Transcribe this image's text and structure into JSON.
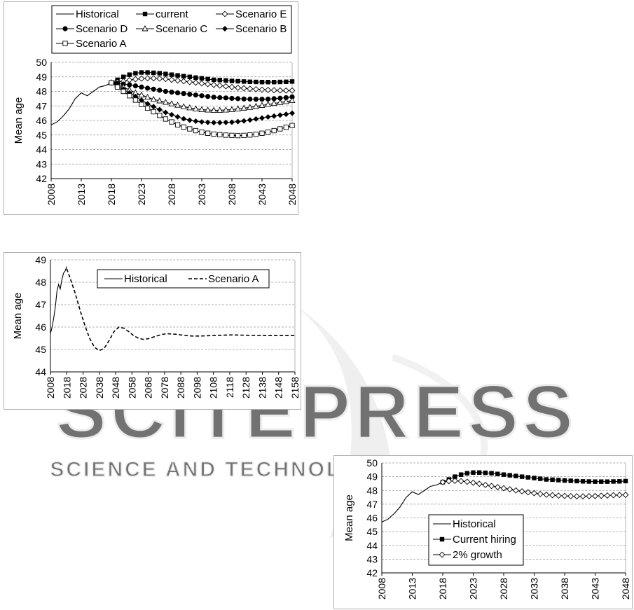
{
  "watermark": {
    "text_big": "SCITEPRESS",
    "text_small": "SCIENCE AND TECHNOLOGY PUBLICATIONS",
    "color": "#d8d8d8"
  },
  "chart_data": [
    {
      "id": "c1",
      "type": "line",
      "ylabel": "Mean age",
      "xlabel": "",
      "title": "",
      "xlim": [
        2008,
        2048
      ],
      "ylim": [
        42,
        50
      ],
      "yticks": [
        42,
        43,
        44,
        45,
        46,
        47,
        48,
        49,
        50
      ],
      "xticks": [
        "2008",
        "2013",
        "2018",
        "2023",
        "2028",
        "2033",
        "2038",
        "2043",
        "2048"
      ],
      "grid": "horizontal-dashed",
      "legend": "top",
      "series": [
        {
          "name": "Historical",
          "marker": "none",
          "x": [
            2008,
            2009,
            2010,
            2011,
            2012,
            2013,
            2014,
            2015,
            2016,
            2017,
            2018
          ],
          "y": [
            45.7,
            45.9,
            46.3,
            46.8,
            47.5,
            47.9,
            47.7,
            48.0,
            48.3,
            48.4,
            48.6
          ]
        },
        {
          "name": "current",
          "marker": "square-filled",
          "x": [
            2018,
            2019,
            2020,
            2021,
            2022,
            2023,
            2024,
            2025,
            2026,
            2027,
            2028,
            2029,
            2030,
            2031,
            2032,
            2033,
            2034,
            2035,
            2036,
            2037,
            2038,
            2039,
            2040,
            2041,
            2042,
            2043,
            2044,
            2045,
            2046,
            2047,
            2048
          ],
          "y": [
            48.6,
            48.8,
            49.0,
            49.15,
            49.25,
            49.3,
            49.3,
            49.28,
            49.25,
            49.2,
            49.15,
            49.1,
            49.05,
            49.0,
            48.95,
            48.9,
            48.85,
            48.8,
            48.78,
            48.75,
            48.72,
            48.7,
            48.68,
            48.66,
            48.65,
            48.64,
            48.64,
            48.64,
            48.65,
            48.66,
            48.68
          ]
        },
        {
          "name": "Scenario E",
          "marker": "diamond-open",
          "x": [
            2018,
            2019,
            2020,
            2021,
            2022,
            2023,
            2024,
            2025,
            2026,
            2027,
            2028,
            2029,
            2030,
            2031,
            2032,
            2033,
            2034,
            2035,
            2036,
            2037,
            2038,
            2039,
            2040,
            2041,
            2042,
            2043,
            2044,
            2045,
            2046,
            2047,
            2048
          ],
          "y": [
            48.6,
            48.65,
            48.7,
            48.78,
            48.84,
            48.88,
            48.9,
            48.9,
            48.88,
            48.85,
            48.8,
            48.75,
            48.7,
            48.65,
            48.6,
            48.55,
            48.5,
            48.45,
            48.4,
            48.35,
            48.3,
            48.25,
            48.22,
            48.18,
            48.15,
            48.12,
            48.1,
            48.08,
            48.07,
            48.06,
            48.06
          ]
        },
        {
          "name": "Scenario D",
          "marker": "circle-filled",
          "x": [
            2018,
            2019,
            2020,
            2021,
            2022,
            2023,
            2024,
            2025,
            2026,
            2027,
            2028,
            2029,
            2030,
            2031,
            2032,
            2033,
            2034,
            2035,
            2036,
            2037,
            2038,
            2039,
            2040,
            2041,
            2042,
            2043,
            2044,
            2045,
            2046,
            2047,
            2048
          ],
          "y": [
            48.6,
            48.55,
            48.5,
            48.45,
            48.38,
            48.3,
            48.22,
            48.15,
            48.08,
            48.0,
            47.95,
            47.9,
            47.85,
            47.8,
            47.75,
            47.7,
            47.65,
            47.6,
            47.57,
            47.55,
            47.52,
            47.5,
            47.48,
            47.47,
            47.46,
            47.46,
            47.47,
            47.5,
            47.53,
            47.57,
            47.62
          ]
        },
        {
          "name": "Scenario C",
          "marker": "triangle-open",
          "x": [
            2018,
            2019,
            2020,
            2021,
            2022,
            2023,
            2024,
            2025,
            2026,
            2027,
            2028,
            2029,
            2030,
            2031,
            2032,
            2033,
            2034,
            2035,
            2036,
            2037,
            2038,
            2039,
            2040,
            2041,
            2042,
            2043,
            2044,
            2045,
            2046,
            2047,
            2048
          ],
          "y": [
            48.6,
            48.45,
            48.3,
            48.1,
            47.9,
            47.75,
            47.6,
            47.45,
            47.35,
            47.25,
            47.15,
            47.05,
            46.95,
            46.87,
            46.8,
            46.75,
            46.72,
            46.7,
            46.7,
            46.72,
            46.75,
            46.8,
            46.85,
            46.9,
            46.97,
            47.04,
            47.1,
            47.17,
            47.24,
            47.3,
            47.37
          ]
        },
        {
          "name": "Scenario B",
          "marker": "diamond-filled",
          "x": [
            2018,
            2019,
            2020,
            2021,
            2022,
            2023,
            2024,
            2025,
            2026,
            2027,
            2028,
            2029,
            2030,
            2031,
            2032,
            2033,
            2034,
            2035,
            2036,
            2037,
            2038,
            2039,
            2040,
            2041,
            2042,
            2043,
            2044,
            2045,
            2046,
            2047,
            2048
          ],
          "y": [
            48.6,
            48.4,
            48.15,
            47.9,
            47.65,
            47.4,
            47.15,
            46.95,
            46.75,
            46.55,
            46.4,
            46.25,
            46.12,
            46.02,
            45.95,
            45.9,
            45.87,
            45.85,
            45.85,
            45.86,
            45.88,
            45.92,
            45.97,
            46.03,
            46.1,
            46.17,
            46.24,
            46.3,
            46.37,
            46.43,
            46.5
          ]
        },
        {
          "name": "Scenario A",
          "marker": "square-open",
          "x": [
            2018,
            2019,
            2020,
            2021,
            2022,
            2023,
            2024,
            2025,
            2026,
            2027,
            2028,
            2029,
            2030,
            2031,
            2032,
            2033,
            2034,
            2035,
            2036,
            2037,
            2038,
            2039,
            2040,
            2041,
            2042,
            2043,
            2044,
            2045,
            2046,
            2047,
            2048
          ],
          "y": [
            48.6,
            48.3,
            48.0,
            47.7,
            47.4,
            47.1,
            46.85,
            46.6,
            46.35,
            46.1,
            45.9,
            45.7,
            45.55,
            45.42,
            45.3,
            45.2,
            45.12,
            45.06,
            45.02,
            44.99,
            44.97,
            44.96,
            44.97,
            45.0,
            45.05,
            45.12,
            45.2,
            45.3,
            45.42,
            45.53,
            45.65
          ]
        }
      ]
    },
    {
      "id": "c2",
      "type": "line",
      "ylabel": "Mean age",
      "xlabel": "",
      "title": "",
      "xlim": [
        2008,
        2158
      ],
      "ylim": [
        44,
        49
      ],
      "yticks": [
        44,
        45,
        46,
        47,
        48,
        49
      ],
      "xticks": [
        "2008",
        "2018",
        "2028",
        "2038",
        "2048",
        "2058",
        "2068",
        "2078",
        "2088",
        "2098",
        "2108",
        "2118",
        "2128",
        "2138",
        "2148",
        "2158"
      ],
      "grid": "horizontal-dashed",
      "legend": "top-right",
      "series": [
        {
          "name": "Historical",
          "style": "solid",
          "x": [
            2008,
            2009,
            2010,
            2011,
            2012,
            2013,
            2014,
            2015,
            2016,
            2017,
            2018
          ],
          "y": [
            45.7,
            46.0,
            46.4,
            46.9,
            47.6,
            47.9,
            47.7,
            48.1,
            48.4,
            48.5,
            48.7
          ]
        },
        {
          "name": "Scenario A",
          "style": "dashed",
          "x": [
            2018,
            2020,
            2023,
            2026,
            2029,
            2032,
            2035,
            2038,
            2041,
            2044,
            2047,
            2050,
            2053,
            2056,
            2059,
            2062,
            2065,
            2068,
            2071,
            2074,
            2077,
            2080,
            2085,
            2090,
            2095,
            2100,
            2110,
            2120,
            2130,
            2140,
            2150,
            2158
          ],
          "y": [
            48.6,
            48.2,
            47.55,
            46.8,
            46.1,
            45.5,
            45.1,
            44.95,
            45.05,
            45.4,
            45.8,
            46.0,
            45.95,
            45.8,
            45.62,
            45.5,
            45.45,
            45.48,
            45.55,
            45.62,
            45.68,
            45.7,
            45.68,
            45.63,
            45.6,
            45.6,
            45.63,
            45.65,
            45.63,
            45.62,
            45.62,
            45.62
          ]
        }
      ]
    },
    {
      "id": "c3",
      "type": "line",
      "ylabel": "Mean age",
      "xlabel": "",
      "title": "",
      "xlim": [
        2008,
        2048
      ],
      "ylim": [
        42,
        50
      ],
      "yticks": [
        42,
        43,
        44,
        45,
        46,
        47,
        48,
        49,
        50
      ],
      "xticks": [
        "2008",
        "2013",
        "2018",
        "2023",
        "2028",
        "2033",
        "2038",
        "2043",
        "2048"
      ],
      "grid": "horizontal-dashed",
      "legend": "bottom-left",
      "series": [
        {
          "name": "Historical",
          "marker": "none",
          "x": [
            2008,
            2009,
            2010,
            2011,
            2012,
            2013,
            2014,
            2015,
            2016,
            2017,
            2018
          ],
          "y": [
            45.7,
            45.9,
            46.3,
            46.8,
            47.5,
            47.9,
            47.7,
            48.0,
            48.3,
            48.4,
            48.6
          ]
        },
        {
          "name": "Current hiring",
          "marker": "square-filled",
          "x": [
            2018,
            2019,
            2020,
            2021,
            2022,
            2023,
            2024,
            2025,
            2026,
            2027,
            2028,
            2029,
            2030,
            2031,
            2032,
            2033,
            2034,
            2035,
            2036,
            2037,
            2038,
            2039,
            2040,
            2041,
            2042,
            2043,
            2044,
            2045,
            2046,
            2047,
            2048
          ],
          "y": [
            48.6,
            48.8,
            49.0,
            49.15,
            49.25,
            49.3,
            49.3,
            49.28,
            49.25,
            49.2,
            49.15,
            49.1,
            49.05,
            49.0,
            48.95,
            48.9,
            48.85,
            48.8,
            48.78,
            48.75,
            48.72,
            48.7,
            48.68,
            48.66,
            48.65,
            48.64,
            48.64,
            48.64,
            48.65,
            48.66,
            48.68
          ]
        },
        {
          "name": "2% growth",
          "marker": "diamond-open",
          "x": [
            2018,
            2019,
            2020,
            2021,
            2022,
            2023,
            2024,
            2025,
            2026,
            2027,
            2028,
            2029,
            2030,
            2031,
            2032,
            2033,
            2034,
            2035,
            2036,
            2037,
            2038,
            2039,
            2040,
            2041,
            2042,
            2043,
            2044,
            2045,
            2046,
            2047,
            2048
          ],
          "y": [
            48.6,
            48.68,
            48.7,
            48.68,
            48.63,
            48.56,
            48.48,
            48.4,
            48.32,
            48.24,
            48.16,
            48.08,
            48.0,
            47.93,
            47.86,
            47.8,
            47.74,
            47.69,
            47.65,
            47.62,
            47.6,
            47.58,
            47.57,
            47.57,
            47.58,
            47.59,
            47.61,
            47.63,
            47.65,
            47.67,
            47.68
          ]
        }
      ]
    }
  ]
}
